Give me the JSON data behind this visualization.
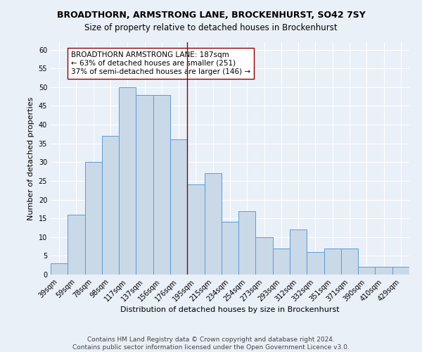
{
  "title": "BROADTHORN, ARMSTRONG LANE, BROCKENHURST, SO42 7SY",
  "subtitle": "Size of property relative to detached houses in Brockenhurst",
  "xlabel": "Distribution of detached houses by size in Brockenhurst",
  "ylabel": "Number of detached properties",
  "categories": [
    "39sqm",
    "59sqm",
    "78sqm",
    "98sqm",
    "117sqm",
    "137sqm",
    "156sqm",
    "176sqm",
    "195sqm",
    "215sqm",
    "234sqm",
    "254sqm",
    "273sqm",
    "293sqm",
    "312sqm",
    "332sqm",
    "351sqm",
    "371sqm",
    "390sqm",
    "410sqm",
    "429sqm"
  ],
  "values": [
    3,
    16,
    30,
    37,
    50,
    48,
    48,
    36,
    24,
    27,
    14,
    17,
    10,
    7,
    12,
    6,
    7,
    7,
    2,
    2,
    2
  ],
  "bar_color": "#c9d9e8",
  "bar_edge_color": "#5b9bd5",
  "vline_x_index": 7.5,
  "vline_color": "#8b0000",
  "annotation_text": "BROADTHORN ARMSTRONG LANE: 187sqm\n← 63% of detached houses are smaller (251)\n37% of semi-detached houses are larger (146) →",
  "annotation_box_color": "#ffffff",
  "annotation_box_edge_color": "#8b0000",
  "ylim": [
    0,
    62
  ],
  "yticks": [
    0,
    5,
    10,
    15,
    20,
    25,
    30,
    35,
    40,
    45,
    50,
    55,
    60
  ],
  "background_color": "#eaf0f8",
  "grid_color": "#ffffff",
  "footer_line1": "Contains HM Land Registry data © Crown copyright and database right 2024.",
  "footer_line2": "Contains public sector information licensed under the Open Government Licence v3.0.",
  "title_fontsize": 9,
  "subtitle_fontsize": 8.5,
  "xlabel_fontsize": 8,
  "ylabel_fontsize": 8,
  "tick_fontsize": 7,
  "annotation_fontsize": 7.5,
  "footer_fontsize": 6.5
}
